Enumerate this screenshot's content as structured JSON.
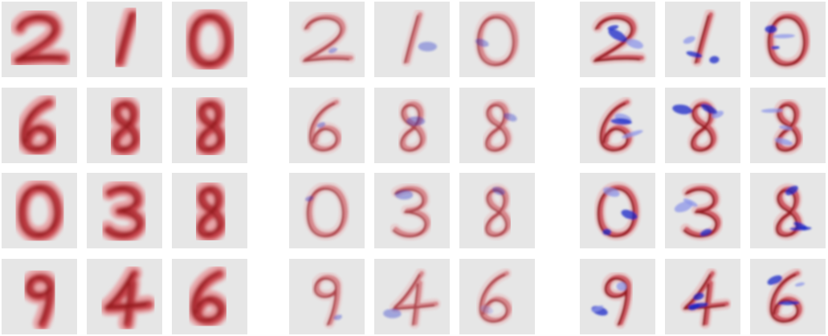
{
  "figure": {
    "panels": [
      {
        "name": "panel-1",
        "colormap": "reds-only",
        "cells": [
          {
            "glyph": "2"
          },
          {
            "glyph": "1"
          },
          {
            "glyph": "0"
          },
          {
            "glyph": "6"
          },
          {
            "glyph": "8"
          },
          {
            "glyph": "8"
          },
          {
            "glyph": "0"
          },
          {
            "glyph": "3"
          },
          {
            "glyph": "8"
          },
          {
            "glyph": "9"
          },
          {
            "glyph": "4"
          },
          {
            "glyph": "6"
          }
        ]
      },
      {
        "name": "panel-2",
        "colormap": "diverging-red-white-blue",
        "cells": [
          {
            "glyph": "2"
          },
          {
            "glyph": "1"
          },
          {
            "glyph": "0"
          },
          {
            "glyph": "6"
          },
          {
            "glyph": "8"
          },
          {
            "glyph": "8"
          },
          {
            "glyph": "0"
          },
          {
            "glyph": "3"
          },
          {
            "glyph": "8"
          },
          {
            "glyph": "9"
          },
          {
            "glyph": "4"
          },
          {
            "glyph": "6"
          }
        ]
      },
      {
        "name": "panel-3",
        "colormap": "diverging-red-white-blue",
        "cells": [
          {
            "glyph": "2"
          },
          {
            "glyph": "1"
          },
          {
            "glyph": "0"
          },
          {
            "glyph": "6"
          },
          {
            "glyph": "8"
          },
          {
            "glyph": "8"
          },
          {
            "glyph": "0"
          },
          {
            "glyph": "3"
          },
          {
            "glyph": "8"
          },
          {
            "glyph": "9"
          },
          {
            "glyph": "4"
          },
          {
            "glyph": "6"
          }
        ]
      }
    ],
    "colors": {
      "cell_background": "#e6e6e6",
      "red_strong": "#8b0f14",
      "red_mid": "#c8424a",
      "red_light": "#e7a0a3",
      "blue_strong": "#1a28c8",
      "blue_light": "#8e96e8"
    }
  }
}
